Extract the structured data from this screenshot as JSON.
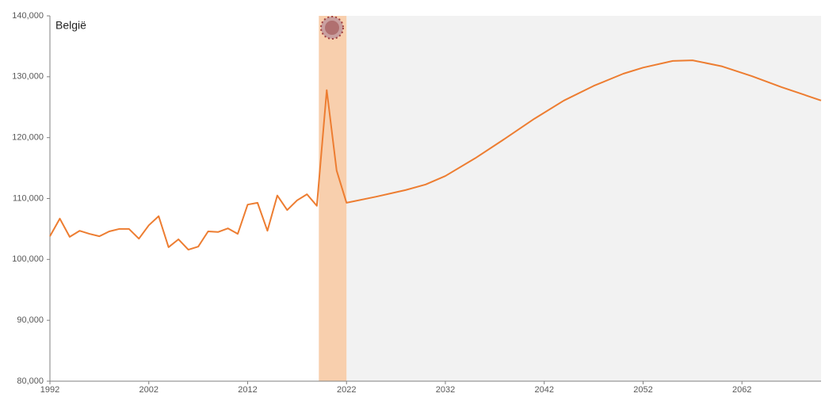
{
  "chart_data": {
    "type": "line",
    "title": "België",
    "x": [
      1992,
      1993,
      1994,
      1995,
      1996,
      1997,
      1998,
      1999,
      2000,
      2001,
      2002,
      2003,
      2004,
      2005,
      2006,
      2007,
      2008,
      2009,
      2010,
      2011,
      2012,
      2013,
      2014,
      2015,
      2016,
      2017,
      2018,
      2019,
      2020,
      2021,
      2022,
      2025,
      2028,
      2030,
      2032,
      2035,
      2038,
      2041,
      2044,
      2047,
      2050,
      2052,
      2055,
      2057,
      2060,
      2063,
      2066,
      2068,
      2070
    ],
    "series": [
      {
        "color": "#ed7d31",
        "values": [
          103800,
          106700,
          103700,
          104700,
          104200,
          103800,
          104600,
          105000,
          105000,
          103400,
          105600,
          107100,
          102000,
          103300,
          101600,
          102100,
          104600,
          104500,
          105100,
          104200,
          109000,
          109300,
          104700,
          110500,
          108100,
          109700,
          110700,
          108800,
          127800,
          114600,
          109300,
          110300,
          111400,
          112300,
          113700,
          116600,
          119800,
          123100,
          126100,
          128500,
          130500,
          131500,
          132600,
          132700,
          131700,
          130100,
          128300,
          127200,
          126100
        ]
      }
    ],
    "xlim": [
      1992,
      2070
    ],
    "ylim": [
      80000,
      140000
    ],
    "xticks": [
      1992,
      2002,
      2012,
      2022,
      2032,
      2042,
      2052,
      2062
    ],
    "yticks": [
      {
        "value": 80000,
        "label": "80,000"
      },
      {
        "value": 90000,
        "label": "90,000"
      },
      {
        "value": 100000,
        "label": "100,000"
      },
      {
        "value": 110000,
        "label": "110,000"
      },
      {
        "value": 120000,
        "label": "120,000"
      },
      {
        "value": 130000,
        "label": "130,000"
      },
      {
        "value": 140000,
        "label": "140,000"
      }
    ],
    "shaded_ranges": [
      {
        "from": 2022,
        "to": 2070,
        "color": "#f2f2f2"
      },
      {
        "from": 2019.2,
        "to": 2022,
        "color": "#f8cfad"
      }
    ]
  }
}
